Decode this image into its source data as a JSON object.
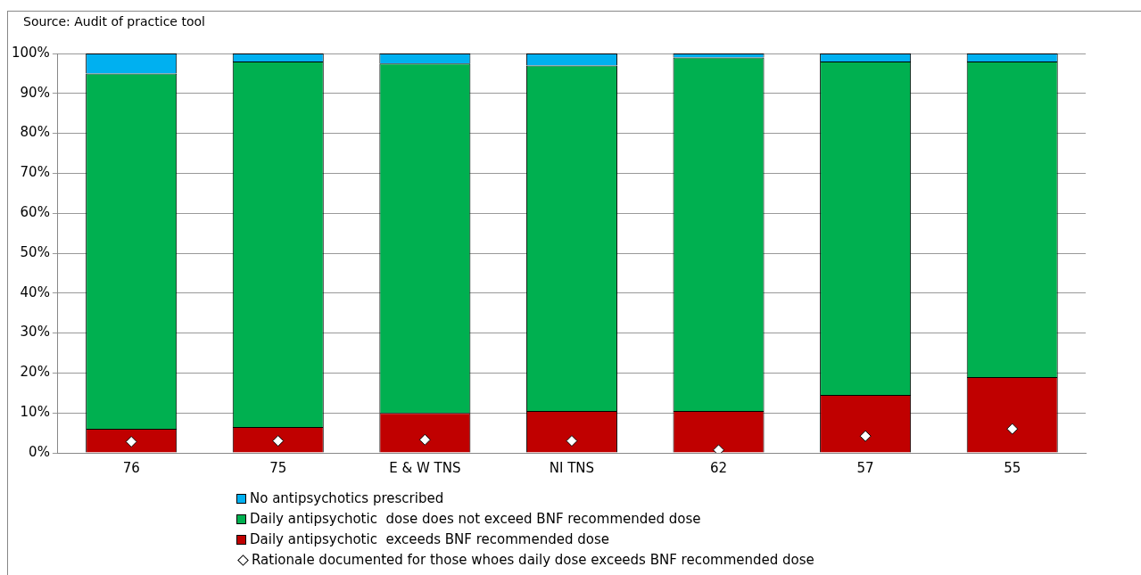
{
  "chart_data": {
    "type": "bar",
    "stacked": true,
    "annotations": [
      "Source: Audit of practice tool"
    ],
    "categories": [
      "76",
      "75",
      "E & W TNS",
      "NI TNS",
      "62",
      "57",
      "55"
    ],
    "series": [
      {
        "name": "Daily antipsychotic  exceeds BNF recommended dose",
        "color": "#c00000",
        "values": [
          6,
          6.5,
          10,
          10.5,
          10.5,
          14.5,
          19
        ]
      },
      {
        "name": "Daily antipsychotic  dose does not exceed BNF recommended dose",
        "color": "#00b050",
        "values": [
          89,
          91.5,
          87.5,
          86.5,
          88.5,
          83.5,
          79
        ]
      },
      {
        "name": "No antipsychotics prescribed",
        "color": "#00b0f0",
        "values": [
          5,
          2,
          2.5,
          3,
          1,
          2,
          2
        ]
      },
      {
        "name": "Rationale documented for those whoes daily dose exceeds BNF recommended dose",
        "type": "scatter",
        "marker": "diamond",
        "color": "#ffffff",
        "x": [
          "76",
          "75",
          "E & W TNS",
          "NI TNS",
          "62",
          "57",
          "55"
        ],
        "values": [
          2.8,
          3,
          3.3,
          3,
          0.7,
          4.2,
          6
        ]
      }
    ],
    "ylim": [
      0,
      100
    ],
    "yticks": [
      {
        "value": 0,
        "label": "0%"
      },
      {
        "value": 10,
        "label": "10%"
      },
      {
        "value": 20,
        "label": "20%"
      },
      {
        "value": 30,
        "label": "30%"
      },
      {
        "value": 40,
        "label": "40%"
      },
      {
        "value": 50,
        "label": "50%"
      },
      {
        "value": 60,
        "label": "60%"
      },
      {
        "value": 70,
        "label": "70%"
      },
      {
        "value": 80,
        "label": "80%"
      },
      {
        "value": 90,
        "label": "90%"
      },
      {
        "value": 100,
        "label": "100%"
      }
    ],
    "grid": "y",
    "legend": "bottom"
  }
}
